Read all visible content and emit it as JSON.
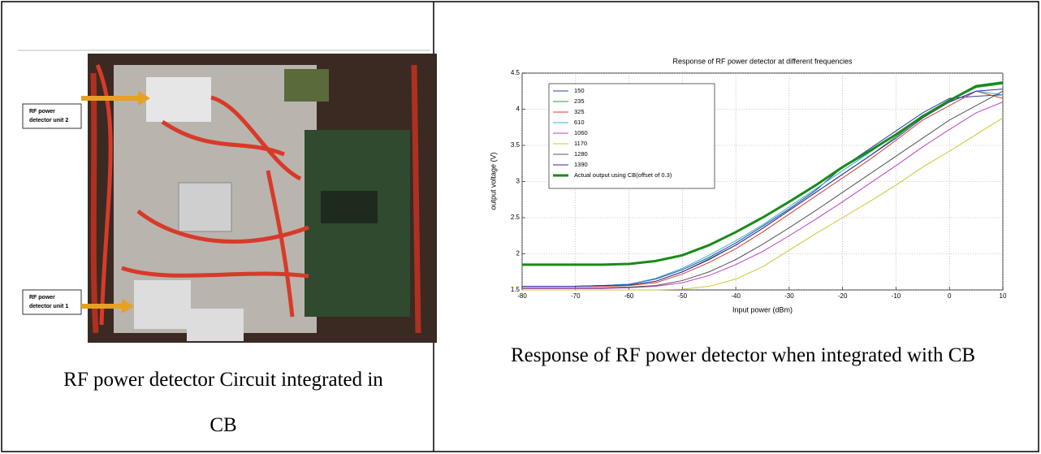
{
  "photo": {
    "labels": [
      [
        "RF power",
        "detector unit 2"
      ],
      [
        "RF power",
        "detector unit 1"
      ]
    ]
  },
  "captions": [
    "RF power detector Circuit integrated in CB",
    "Response of RF power detector when integrated with CB"
  ],
  "chart_data": {
    "type": "line",
    "title": "Response of RF power detector at different frequencies",
    "x_label": "Input power (dBm)",
    "y_label": "output voltage (V)",
    "x": [
      -80,
      -75,
      -70,
      -65,
      -60,
      -55,
      -50,
      -45,
      -40,
      -35,
      -30,
      -25,
      -20,
      -15,
      -10,
      -5,
      0,
      5,
      10
    ],
    "series": [
      {
        "name": "150",
        "color": "#2a3f9e",
        "width": 1,
        "values": [
          1.55,
          1.55,
          1.55,
          1.56,
          1.58,
          1.65,
          1.78,
          1.95,
          2.15,
          2.38,
          2.62,
          2.88,
          3.2,
          3.45,
          3.7,
          3.95,
          4.15,
          4.18,
          4.2
        ]
      },
      {
        "name": "235",
        "color": "#2e9b3a",
        "width": 1,
        "values": [
          1.55,
          1.55,
          1.55,
          1.56,
          1.57,
          1.62,
          1.75,
          1.93,
          2.12,
          2.35,
          2.6,
          2.85,
          3.1,
          3.35,
          3.62,
          3.9,
          4.12,
          4.3,
          4.35
        ]
      },
      {
        "name": "325",
        "color": "#d0412f",
        "width": 1,
        "values": [
          1.55,
          1.55,
          1.55,
          1.55,
          1.56,
          1.6,
          1.72,
          1.88,
          2.07,
          2.3,
          2.55,
          2.8,
          3.05,
          3.3,
          3.57,
          3.85,
          4.05,
          4.25,
          4.15
        ]
      },
      {
        "name": "610",
        "color": "#33b5c4",
        "width": 1,
        "values": [
          1.55,
          1.55,
          1.55,
          1.56,
          1.58,
          1.66,
          1.8,
          1.98,
          2.18,
          2.4,
          2.65,
          2.9,
          3.15,
          3.4,
          3.65,
          3.92,
          4.1,
          4.25,
          4.2
        ]
      },
      {
        "name": "1060",
        "color": "#c040c0",
        "width": 1,
        "values": [
          1.52,
          1.52,
          1.52,
          1.52,
          1.53,
          1.55,
          1.6,
          1.7,
          1.85,
          2.03,
          2.25,
          2.48,
          2.72,
          2.97,
          3.22,
          3.48,
          3.72,
          3.95,
          4.1
        ]
      },
      {
        "name": "1170",
        "color": "#c8c832",
        "width": 1,
        "values": [
          1.5,
          1.5,
          1.5,
          1.5,
          1.5,
          1.5,
          1.51,
          1.55,
          1.65,
          1.82,
          2.05,
          2.28,
          2.5,
          2.72,
          2.95,
          3.2,
          3.42,
          3.65,
          3.88
        ]
      },
      {
        "name": "1280",
        "color": "#555555",
        "width": 1,
        "values": [
          1.53,
          1.53,
          1.53,
          1.53,
          1.54,
          1.56,
          1.63,
          1.75,
          1.92,
          2.13,
          2.36,
          2.6,
          2.85,
          3.1,
          3.35,
          3.6,
          3.85,
          4.05,
          4.25
        ]
      },
      {
        "name": "1390",
        "color": "#2a2ab0",
        "width": 1,
        "values": [
          1.55,
          1.55,
          1.55,
          1.56,
          1.57,
          1.62,
          1.75,
          1.92,
          2.12,
          2.35,
          2.6,
          2.85,
          3.1,
          3.35,
          3.6,
          3.88,
          4.1,
          4.25,
          4.28
        ]
      },
      {
        "name": "Actual output using CB(offset of 0.3)",
        "color": "#1a8a1a",
        "width": 3,
        "values": [
          1.85,
          1.85,
          1.85,
          1.85,
          1.86,
          1.9,
          1.98,
          2.12,
          2.3,
          2.5,
          2.72,
          2.95,
          3.2,
          3.42,
          3.65,
          3.9,
          4.12,
          4.32,
          4.37
        ]
      }
    ],
    "xlim": [
      -80,
      10
    ],
    "xticks": [
      -80,
      -70,
      -60,
      -50,
      -40,
      -30,
      -20,
      -10,
      0,
      10
    ],
    "ylim": [
      1.5,
      4.5
    ],
    "yticks": [
      1.5,
      2,
      2.5,
      3,
      3.5,
      4,
      4.5
    ],
    "grid": true,
    "legend": "upper left"
  }
}
